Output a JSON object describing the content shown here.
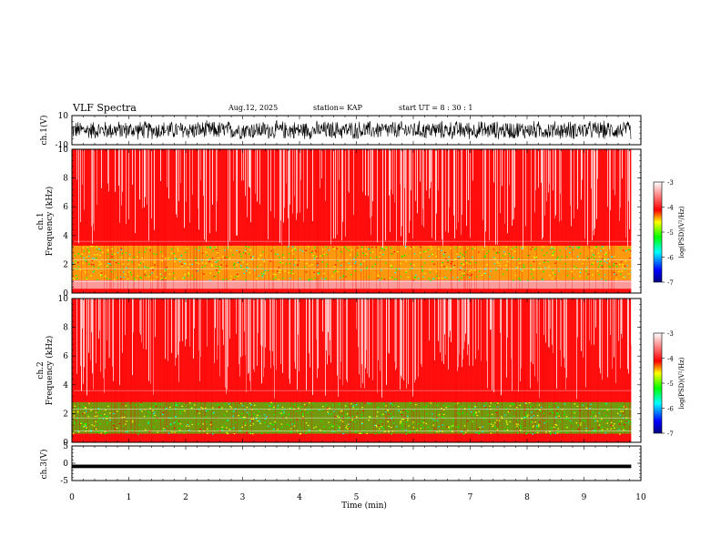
{
  "header": {
    "title": "VLF Spectra",
    "date": "Aug.12, 2025",
    "station": "station= KAP",
    "start_ut": "start UT =  8 : 30 : 1"
  },
  "chart_data": [
    {
      "type": "line",
      "panel": "ch1-waveform",
      "ylabel": "ch.1(V)",
      "ylim": [
        -10,
        10
      ],
      "yticks": [
        "10",
        "-10"
      ],
      "x_range_min": [
        0,
        9.83
      ],
      "description_series": "dense noise-like waveform filling roughly -7 to 7 V"
    },
    {
      "type": "heatmap",
      "panel": "ch1-spectrogram",
      "ylabel": "ch.1 Frequency (kHz)",
      "ylim": [
        0,
        10
      ],
      "yticks": [
        "0",
        "2",
        "4",
        "6",
        "8",
        "10"
      ],
      "colorbar_label": "log(PSD)(V²/Hz)",
      "colorbar_ticks": [
        "-3",
        "-4",
        "-5",
        "-6",
        "-7"
      ],
      "bands": [
        {
          "from_khz": 0,
          "to_khz": 0.3,
          "level": -3.8
        },
        {
          "from_khz": 0.3,
          "to_khz": 0.9,
          "level": -3.2
        },
        {
          "from_khz": 0.9,
          "to_khz": 3.3,
          "level": -4.6
        },
        {
          "from_khz": 3.3,
          "to_khz": 10,
          "level": -3.6
        }
      ]
    },
    {
      "type": "heatmap",
      "panel": "ch2-spectrogram",
      "ylabel": "ch.2 Frequency (kHz)",
      "ylim": [
        0,
        10
      ],
      "yticks": [
        "0",
        "2",
        "4",
        "6",
        "8",
        "10"
      ],
      "colorbar_label": "log(PSD)(V²/Hz)",
      "colorbar_ticks": [
        "-3",
        "-4",
        "-5",
        "-6",
        "-7"
      ],
      "bands": [
        {
          "from_khz": 0,
          "to_khz": 0.6,
          "level": -3.8
        },
        {
          "from_khz": 0.6,
          "to_khz": 2.8,
          "level": -4.8
        },
        {
          "from_khz": 2.8,
          "to_khz": 10,
          "level": -3.6
        }
      ]
    },
    {
      "type": "line",
      "panel": "ch3-waveform",
      "ylabel": "ch.3(V)",
      "ylim": [
        -5,
        5
      ],
      "yticks": [
        "5",
        "0",
        "-5"
      ],
      "level_band": [
        -1.4,
        -0.4
      ],
      "x_range_min": [
        0,
        9.83
      ]
    }
  ],
  "x_axis": {
    "label": "Time  (min)",
    "range": [
      0,
      10
    ],
    "ticks": [
      "0",
      "1",
      "2",
      "3",
      "4",
      "5",
      "6",
      "7",
      "8",
      "9",
      "10"
    ]
  },
  "colors": {
    "high": "#ff0000",
    "mid": "#ffff00",
    "low": "#00ff00",
    "lower": "#00ffff",
    "min": "#0000ff",
    "axis": "#000000"
  }
}
